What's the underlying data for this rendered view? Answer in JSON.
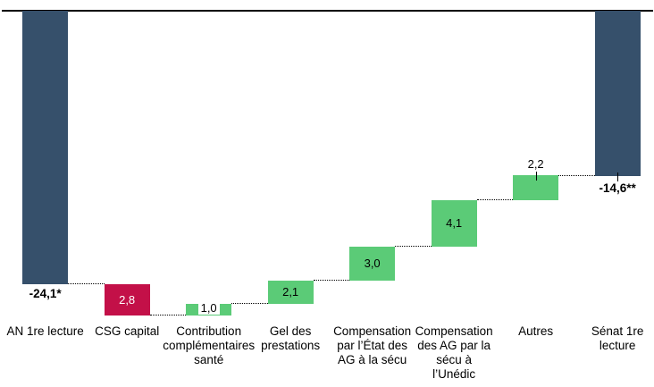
{
  "chart_data": {
    "type": "waterfall",
    "title": "",
    "legend": "none",
    "gridlines": false,
    "axis": {
      "y_axis_visible": false,
      "x_axis_line_visible": true,
      "x_axis_line_value": 0,
      "values_direction": "negative-downward"
    },
    "bars": [
      {
        "category": "AN 1re lecture",
        "category_lines": [
          "AN 1re lecture"
        ],
        "value": -24.1,
        "role": "total",
        "value_label": "-24,1*",
        "value_label_style": "bold-below"
      },
      {
        "category": "CSG capital",
        "category_lines": [
          "CSG capital"
        ],
        "value": -2.8,
        "role": "decrease",
        "value_label": "2,8",
        "value_label_style": "inside-white-text"
      },
      {
        "category": "Contribution complémentaires santé",
        "category_lines": [
          "Contribution",
          "complémentaires",
          "santé"
        ],
        "value": 1.0,
        "role": "increase",
        "value_label": "1,0",
        "value_label_style": "inside-boxed"
      },
      {
        "category": "Gel des prestations",
        "category_lines": [
          "Gel des",
          "prestations"
        ],
        "value": 2.1,
        "role": "increase",
        "value_label": "2,1",
        "value_label_style": "inside"
      },
      {
        "category": "Compensation par l’État des AG à la sécu",
        "category_lines": [
          "Compensation",
          "par l’État des",
          "AG à la sécu"
        ],
        "value": 3.0,
        "role": "increase",
        "value_label": "3,0",
        "value_label_style": "inside"
      },
      {
        "category": "Compensation des AG par la sécu à l’Unédic",
        "category_lines": [
          "Compensation",
          "des AG par la",
          "sécu à",
          "l’Unédic"
        ],
        "value": 4.1,
        "role": "increase",
        "value_label": "4,1",
        "value_label_style": "inside"
      },
      {
        "category": "Autres",
        "category_lines": [
          "Autres"
        ],
        "value": 2.2,
        "role": "increase",
        "value_label": "2,2",
        "value_label_style": "above-leader"
      },
      {
        "category": "Sénat 1re lecture",
        "category_lines": [
          "Sénat 1re",
          "lecture"
        ],
        "value": -14.6,
        "role": "total",
        "value_label": "-14,6**",
        "value_label_style": "bold-below-leader"
      }
    ],
    "cumulative_levels": [
      -24.1,
      -26.9,
      -25.9,
      -23.8,
      -20.8,
      -16.7,
      -14.5,
      -14.6
    ],
    "colors": {
      "total": "#36506B",
      "increase": "#5BCB77",
      "decrease": "#C31048",
      "baseline": "#000000",
      "connector": "#000000",
      "label_text": "#000000",
      "value_text_on_decrease": "#FFFFFF",
      "background": "#FFFFFF"
    }
  }
}
